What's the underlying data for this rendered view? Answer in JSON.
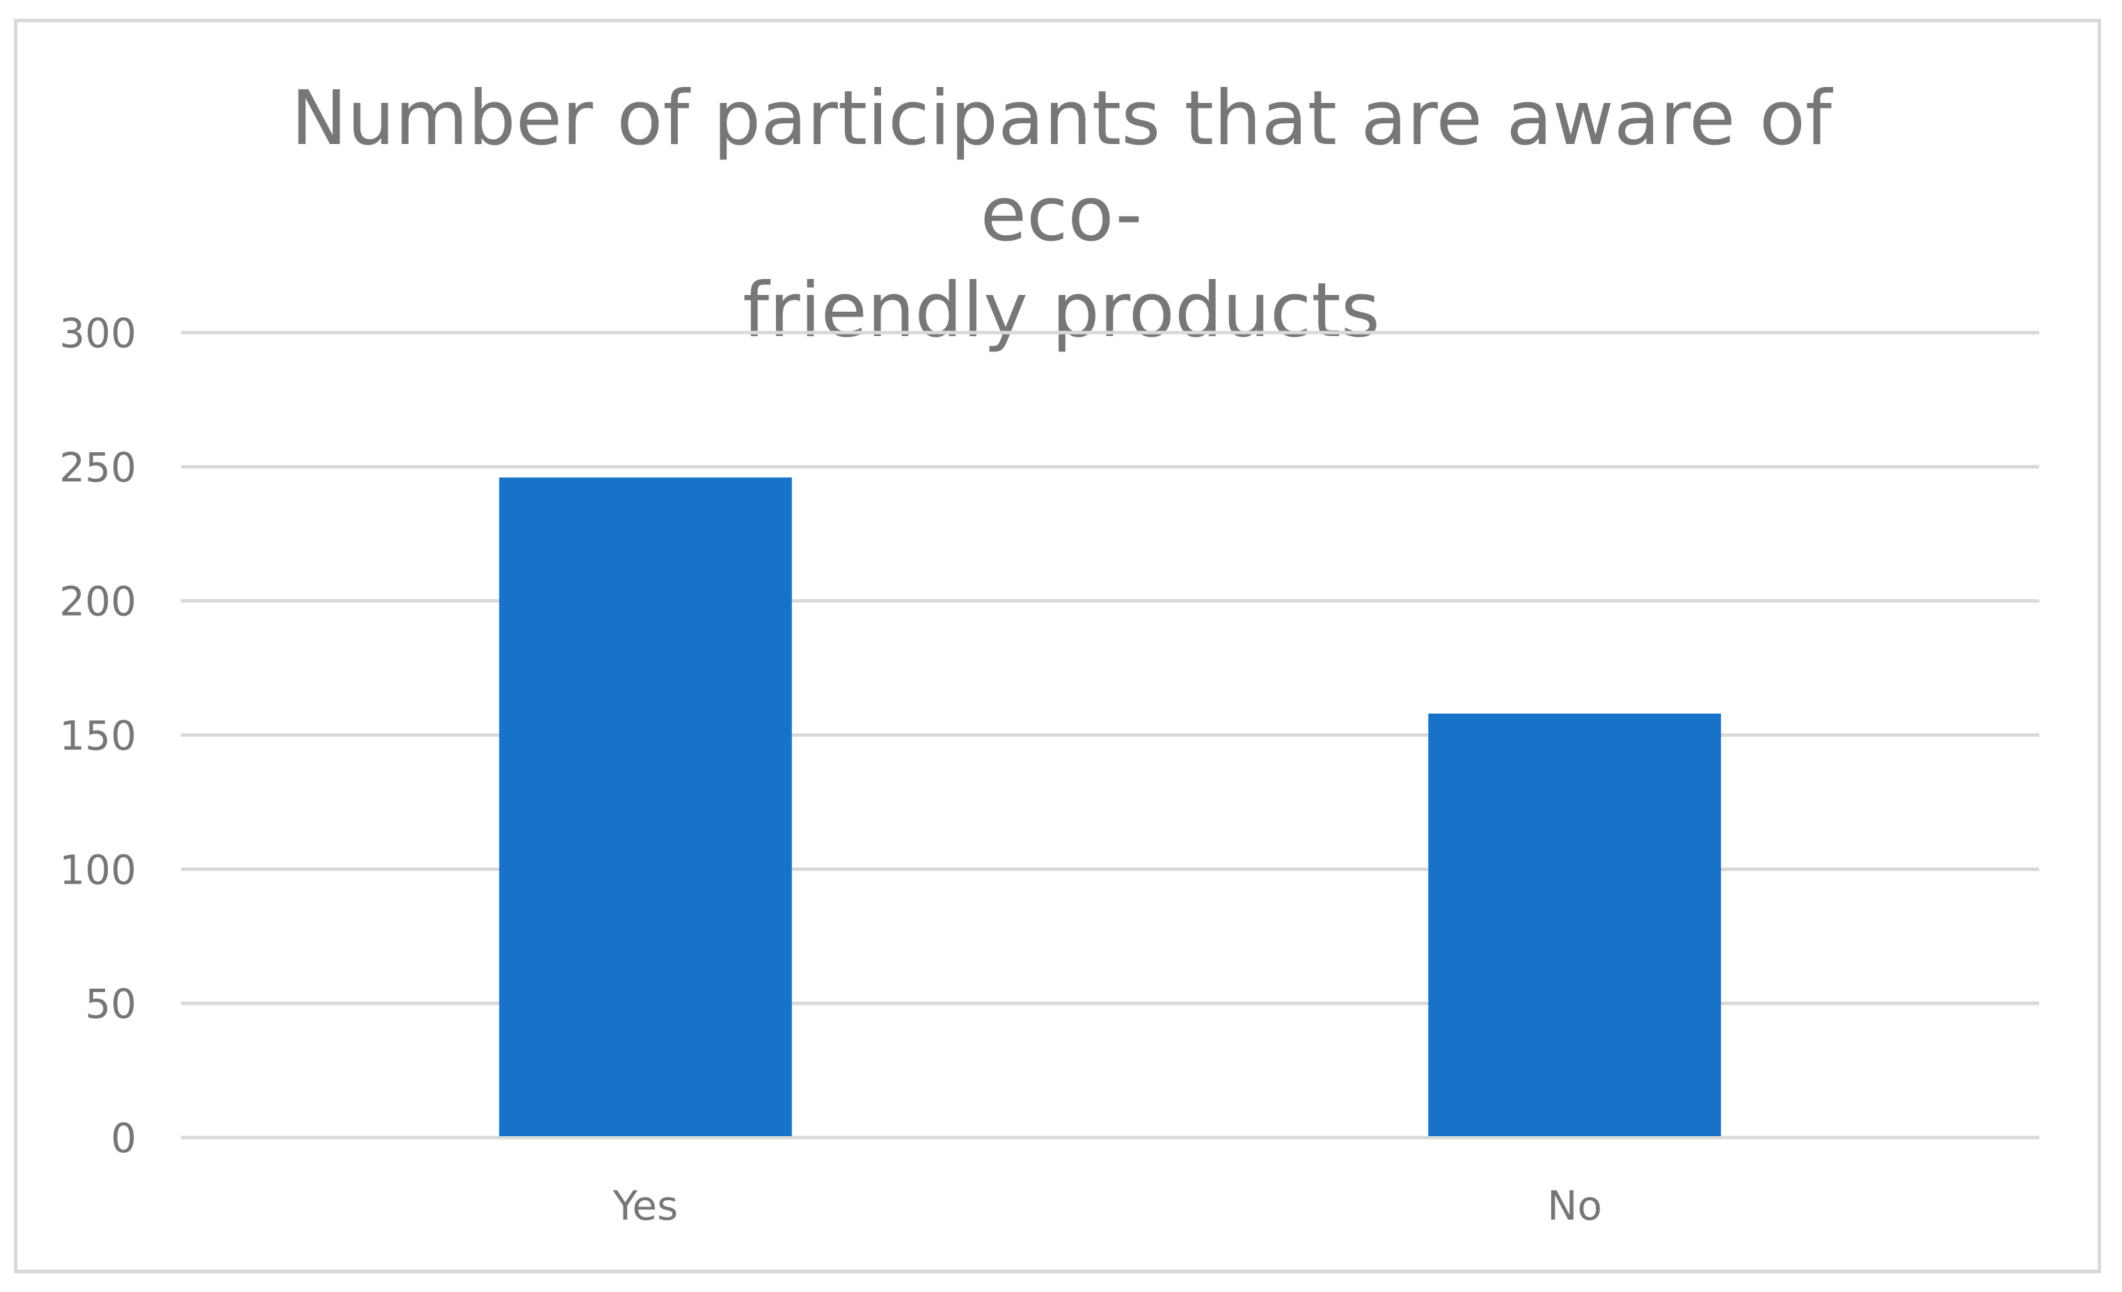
{
  "chart_data": {
    "type": "bar",
    "title": "Number of participants that are aware of eco-friendly products",
    "title_lines": [
      "Number of participants that are aware of eco-",
      "friendly products"
    ],
    "categories": [
      "Yes",
      "No"
    ],
    "values": [
      246,
      158
    ],
    "y_ticks": [
      "0",
      "50",
      "100",
      "150",
      "200",
      "250",
      "300"
    ],
    "xlabel": "",
    "ylabel": "",
    "ylim": [
      0,
      300
    ],
    "grid": true,
    "legend": "none",
    "bar_color": "#1873C8",
    "grid_color": "#D9D9D9",
    "text_color": "#767676"
  }
}
